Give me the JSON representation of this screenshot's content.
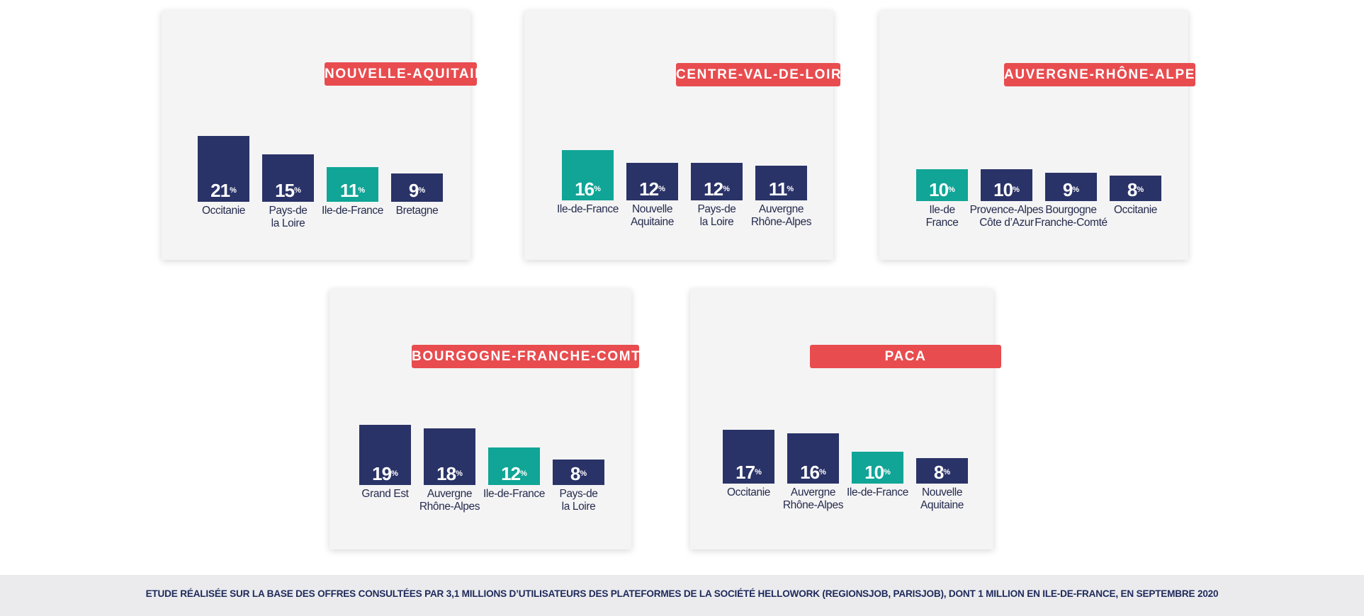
{
  "colors": {
    "highlight": "#10a596",
    "default": "#2a3367",
    "title_badge": "#e84c4f",
    "panel": "#f4f4f5",
    "label_text": "#252b4d"
  },
  "footer": {
    "text": "ETUDE RÉALISÉE SUR LA BASE DES OFFRES CONSULTÉES PAR 3,1 MILLIONS D’UTILISATEURS DES PLATEFORMES DE LA SOCIÉTÉ HELLOWORK (REGIONSJOB, PARISJOB), DONT 1 MILLION EN ILE-DE-FRANCE, EN SEPTEMBRE 2020"
  },
  "chart_data": [
    {
      "type": "bar",
      "title": "NOUVELLE-AQUITAINE",
      "categories": [
        "Occitanie",
        "Pays-de\nla Loire",
        "Ile-de-France",
        "Bretagne"
      ],
      "values": [
        21,
        15,
        11,
        9
      ],
      "value_labels": [
        "21",
        "15",
        "11",
        "9"
      ],
      "unit": "%",
      "highlight": [
        false,
        false,
        true,
        false
      ]
    },
    {
      "type": "bar",
      "title": "CENTRE-VAL-DE-LOIRE",
      "categories": [
        "Ile-de-France",
        "Nouvelle\nAquitaine",
        "Pays-de\nla Loire",
        "Auvergne\nRhône-Alpes"
      ],
      "values": [
        16,
        12,
        12,
        11
      ],
      "value_labels": [
        "16",
        "12",
        "12",
        "11"
      ],
      "unit": "%",
      "highlight": [
        true,
        false,
        false,
        false
      ]
    },
    {
      "type": "bar",
      "title": "AUVERGNE-RHÔNE-ALPES",
      "categories": [
        "Ile-de\nFrance",
        "Provence-Alpes\nCôte d’Azur",
        "Bourgogne\nFranche-Comté",
        "Occitanie"
      ],
      "values": [
        10,
        10,
        9,
        8
      ],
      "value_labels": [
        "10",
        "10",
        "9",
        "8"
      ],
      "unit": "%",
      "highlight": [
        true,
        false,
        false,
        false
      ]
    },
    {
      "type": "bar",
      "title": "BOURGOGNE-FRANCHE-COMTÉ",
      "categories": [
        "Grand Est",
        "Auvergne\nRhône-Alpes",
        "Ile-de-France",
        "Pays-de\nla Loire"
      ],
      "values": [
        19,
        18,
        12,
        8
      ],
      "value_labels": [
        "19",
        "18",
        "12",
        "8"
      ],
      "unit": "%",
      "highlight": [
        false,
        false,
        true,
        false
      ]
    },
    {
      "type": "bar",
      "title": "PACA",
      "categories": [
        "Occitanie",
        "Auvergne\nRhône-Alpes",
        "Ile-de-France",
        "Nouvelle\nAquitaine"
      ],
      "values": [
        17,
        16,
        10,
        8
      ],
      "value_labels": [
        "17",
        "16",
        "10",
        "8"
      ],
      "unit": "%",
      "highlight": [
        false,
        false,
        true,
        false
      ]
    }
  ]
}
